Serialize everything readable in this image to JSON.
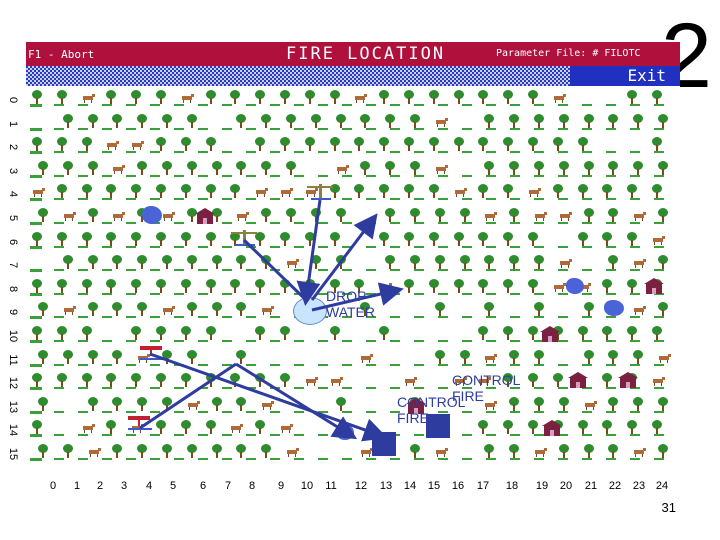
{
  "slide_number": "2",
  "page_number": "31",
  "window": {
    "abort_label": "F1 - Abort",
    "title": "FIRE LOCATION",
    "param_label": "Parameter File: # FILOTC",
    "exit_label": "Exit"
  },
  "y_axis_labels": [
    "0",
    "1",
    "2",
    "3",
    "4",
    "5",
    "6",
    "7",
    "8",
    "9",
    "10",
    "11",
    "12",
    "13",
    "14",
    "15"
  ],
  "x_axis_labels": [
    "0",
    "1",
    "2",
    "3",
    "4",
    "5",
    "6",
    "7",
    "8",
    "9",
    "10",
    "11",
    "12",
    "13",
    "14",
    "15",
    "16",
    "17",
    "18",
    "19",
    "20",
    "21",
    "22",
    "23",
    "24"
  ],
  "annotations": {
    "drop_water": "DROP\nWATER",
    "control_fire_1": "CONTROL\nFIRE",
    "control_fire_2": "CONTROL\nFIRE"
  },
  "colors": {
    "titlebar": "#b0103c",
    "arrow": "#2e3ca0",
    "tree": "#2e8b2e",
    "water": "#4a64d8"
  },
  "icons": [
    "tree-icon",
    "deer-icon",
    "house-icon",
    "pond-icon",
    "airplane-icon",
    "fire-truck-icon"
  ]
}
